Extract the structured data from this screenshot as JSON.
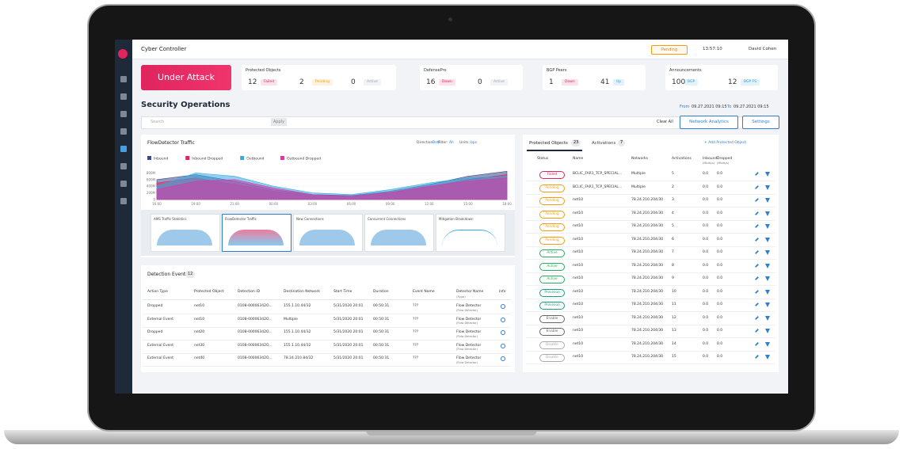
{
  "header": {
    "app_title": "Cyber Controller",
    "pending": "Pending",
    "time": "13:57:10",
    "user": "David Cohen"
  },
  "alert": "Under Attack",
  "status_cards": [
    {
      "title": "Protected Objects",
      "items": [
        {
          "count": 12,
          "label": "Failed"
        },
        {
          "count": 2,
          "label": "Pending"
        },
        {
          "count": 0,
          "label": "Active"
        }
      ]
    },
    {
      "title": "DefensePro",
      "items": [
        {
          "count": 16,
          "label": "Down"
        },
        {
          "count": 0,
          "label": "Active"
        }
      ]
    },
    {
      "title": "BGP Peers",
      "items": [
        {
          "count": 1,
          "label": "Down"
        },
        {
          "count": 41,
          "label": "Up"
        }
      ]
    },
    {
      "title": "Announcements",
      "items": [
        {
          "count": 100,
          "label": "BGP"
        },
        {
          "count": 12,
          "label": "BGP FS"
        }
      ]
    }
  ],
  "page_title": "Security Operations",
  "date_range": {
    "from_label": "From",
    "from": "09.27.2021 09:15",
    "to_label": "To",
    "to": "09.27.2021 09:15"
  },
  "toolbar": {
    "search": "Search",
    "apply": "Apply",
    "clear": "Clear All",
    "network_analytics": "Network Analytics",
    "settings": "Settings"
  },
  "traffic_chart": {
    "type": "area",
    "title": "FlowDetector Traffic",
    "filters": [
      {
        "label": "Direction:",
        "value": "Both"
      },
      {
        "label": "Filter:",
        "value": "All"
      },
      {
        "label": "Units:",
        "value": "bps"
      }
    ],
    "x": [
      "16:00",
      "19:00",
      "21:00",
      "00:00",
      "03:00",
      "06:00",
      "09:00",
      "12:00",
      "15:00",
      "18:00"
    ],
    "ylim": [
      0,
      1000
    ],
    "yticks": [
      {
        "value": 0,
        "label": "0"
      },
      {
        "value": 200,
        "label": "200M"
      },
      {
        "value": 400,
        "label": "400M"
      },
      {
        "value": 600,
        "label": "600M"
      },
      {
        "value": 800,
        "label": "800M"
      }
    ],
    "series": [
      {
        "name": "Inbound",
        "color": "#3a4a8c",
        "values": [
          600,
          750,
          550,
          300,
          150,
          120,
          250,
          450,
          700,
          850
        ]
      },
      {
        "name": "Inbound Dropped",
        "color": "#e0245e",
        "values": [
          500,
          650,
          450,
          250,
          120,
          100,
          200,
          380,
          600,
          750
        ]
      },
      {
        "name": "Outbound",
        "color": "#36a9e1",
        "values": [
          400,
          800,
          700,
          400,
          200,
          150,
          300,
          500,
          650,
          700
        ]
      },
      {
        "name": "Outbound Dropped",
        "color": "#d63aa6",
        "values": [
          300,
          550,
          600,
          350,
          150,
          100,
          220,
          400,
          550,
          650
        ]
      }
    ]
  },
  "thumbnails": [
    "AMS Traffic Statistics",
    "FlowDetector Traffic",
    "New Connections",
    "Concurrent Connections",
    "Mitigation Breakdown"
  ],
  "detection_events": {
    "title": "Detection Events",
    "count": 12,
    "columns": [
      "Action Type",
      "Protected Object",
      "Detection ID",
      "Destination Network",
      "Start Time",
      "Duration",
      "Event Name",
      "Detector Name",
      "Info"
    ],
    "detector_sub": "(Type)",
    "rows": [
      {
        "action": "Dropped",
        "object": "net10",
        "id": "0108-00006342O...",
        "network": "155.1.10.44/32",
        "start": "5/31/2020 20:01",
        "duration": "00:50:31",
        "event": "???",
        "detector": "Flow Detector",
        "detector_type": "(Flow Detector)"
      },
      {
        "action": "External Event",
        "object": "net10",
        "id": "0108-00006342O...",
        "network": "Multiple",
        "start": "5/31/2020 20:01",
        "duration": "00:50:31",
        "event": "???",
        "detector": "Flow Detector",
        "detector_type": "(Flow Detector)"
      },
      {
        "action": "Dropped",
        "object": "net20",
        "id": "0108-00006342O...",
        "network": "155.1.10.44/32",
        "start": "5/31/2020 20:01",
        "duration": "00:50:31",
        "event": "???",
        "detector": "Flow Detector",
        "detector_type": "(Flow Detector)"
      },
      {
        "action": "External Event",
        "object": "net30",
        "id": "0108-00006342O...",
        "network": "155.1.10.44/32",
        "start": "5/31/2020 20:01",
        "duration": "00:50:31",
        "event": "???",
        "detector": "Flow Detector",
        "detector_type": "(Flow Detector)"
      },
      {
        "action": "External Event",
        "object": "net40",
        "id": "0108-00006342O...",
        "network": "78.24.210.84/32",
        "start": "5/31/2020 20:01",
        "duration": "00:50:31",
        "event": "???",
        "detector": "Flow Detector",
        "detector_type": "(Flow Detector)"
      }
    ]
  },
  "protected_objects": {
    "tabs": [
      {
        "label": "Protected Objects",
        "count": 23
      },
      {
        "label": "Activations",
        "count": 7
      }
    ],
    "add": "+ Add Protected Object",
    "columns": [
      "Status",
      "Name",
      "Networks",
      "Activations",
      "Inbound",
      "Dropped"
    ],
    "column_units": "(Mbits/s)",
    "rows": [
      {
        "status": "Failed",
        "name": "BCLIC_FAR1_TCP_SPECIAL...",
        "networks": "Multiple",
        "activations": 5,
        "inbound": "0.0",
        "dropped": "0.0"
      },
      {
        "status": "Pending",
        "name": "BCLIC_FAR1_TCP_SPECIAL...",
        "networks": "Multiple",
        "activations": 2,
        "inbound": "0.0",
        "dropped": "0.0"
      },
      {
        "status": "Pending",
        "name": "net10",
        "networks": "78.24.210.204/30",
        "activations": 3,
        "inbound": "0.0",
        "dropped": "0.0"
      },
      {
        "status": "Pending",
        "name": "net10",
        "networks": "78.24.210.204/30",
        "activations": 4,
        "inbound": "0.0",
        "dropped": "0.0"
      },
      {
        "status": "Pending",
        "name": "net10",
        "networks": "78.24.210.204/30",
        "activations": 5,
        "inbound": "0.0",
        "dropped": "0.0"
      },
      {
        "status": "Pending",
        "name": "net10",
        "networks": "78.24.210.204/30",
        "activations": 6,
        "inbound": "0.0",
        "dropped": "0.0"
      },
      {
        "status": "Active",
        "name": "net10",
        "networks": "78.24.210.204/30",
        "activations": 7,
        "inbound": "0.0",
        "dropped": "0.0"
      },
      {
        "status": "Active",
        "name": "net10",
        "networks": "78.24.210.204/30",
        "activations": 8,
        "inbound": "0.0",
        "dropped": "0.0"
      },
      {
        "status": "Active",
        "name": "net10",
        "networks": "78.24.210.204/30",
        "activations": 9,
        "inbound": "0.0",
        "dropped": "0.0"
      },
      {
        "status": "Provision",
        "name": "net10",
        "networks": "78.24.210.204/30",
        "activations": 10,
        "inbound": "0.0",
        "dropped": "0.0"
      },
      {
        "status": "Provision",
        "name": "net10",
        "networks": "78.24.210.204/30",
        "activations": 11,
        "inbound": "0.0",
        "dropped": "0.0"
      },
      {
        "status": "Enable",
        "name": "net10",
        "networks": "78.24.210.204/30",
        "activations": 12,
        "inbound": "0.0",
        "dropped": "0.0"
      },
      {
        "status": "Enable",
        "name": "net10",
        "networks": "78.24.210.204/30",
        "activations": 13,
        "inbound": "0.0",
        "dropped": "0.0"
      },
      {
        "status": "Disable",
        "name": "net10",
        "networks": "78.24.210.204/30",
        "activations": 14,
        "inbound": "0.0",
        "dropped": "0.0"
      },
      {
        "status": "Disable",
        "name": "net10",
        "networks": "78.24.210.204/30",
        "activations": 15,
        "inbound": "0.0",
        "dropped": "0.0"
      }
    ]
  }
}
